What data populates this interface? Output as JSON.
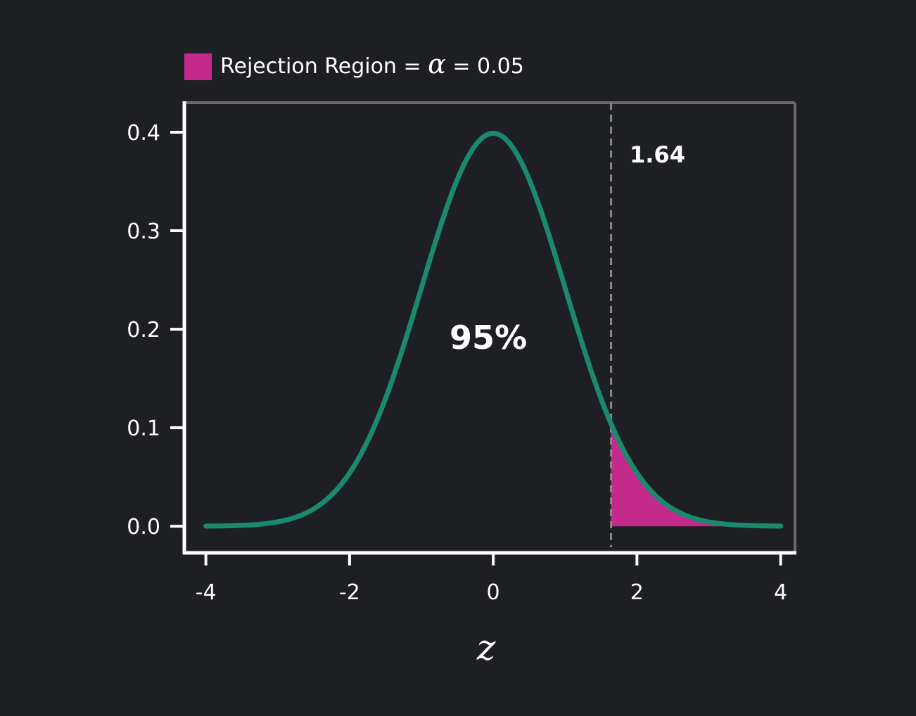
{
  "colors": {
    "background": "#1e1f22",
    "curve": "#1a8a6e",
    "rejection": "#c42a8b",
    "axis": "#ffffff",
    "frame": "#6b6b6b",
    "critical_line": "#8a8a8a"
  },
  "legend": {
    "swatch_color": "#c42a8b",
    "label_prefix": "Rejection Region = ",
    "alpha_symbol": "α",
    "label_suffix": " = 0.05"
  },
  "annotations": {
    "critical_value_label": "1.64",
    "center_label": "95%"
  },
  "chart_data": {
    "type": "area",
    "title": "",
    "xlabel": "z",
    "ylabel": "",
    "xlim": [
      -4.3,
      4.2
    ],
    "ylim": [
      -0.027,
      0.43
    ],
    "x_ticks": [
      -4,
      -2,
      0,
      2,
      4
    ],
    "x_tick_labels": [
      "-4",
      "-2",
      "0",
      "2",
      "4"
    ],
    "y_ticks": [
      0.0,
      0.1,
      0.2,
      0.3,
      0.4
    ],
    "y_tick_labels": [
      "0.0",
      "0.1",
      "0.2",
      "0.3",
      "0.4"
    ],
    "grid": false,
    "legend_position": "top-left",
    "series": [
      {
        "kind": "line",
        "color": "#1a8a6e",
        "x": [
          -4.0,
          -3.75,
          -3.5,
          -3.25,
          -3.0,
          -2.75,
          -2.5,
          -2.25,
          -2.0,
          -1.75,
          -1.5,
          -1.25,
          -1.0,
          -0.75,
          -0.5,
          -0.25,
          0.0,
          0.25,
          0.5,
          0.75,
          1.0,
          1.25,
          1.5,
          1.75,
          2.0,
          2.25,
          2.5,
          2.75,
          3.0,
          3.25,
          3.5,
          3.75,
          4.0
        ],
        "y": [
          0.0001,
          0.0004,
          0.0009,
          0.002,
          0.0044,
          0.0091,
          0.0175,
          0.0317,
          0.054,
          0.0863,
          0.1295,
          0.1826,
          0.242,
          0.3011,
          0.3521,
          0.3867,
          0.3989,
          0.3867,
          0.3521,
          0.3011,
          0.242,
          0.1826,
          0.1295,
          0.0863,
          0.054,
          0.0317,
          0.0175,
          0.0091,
          0.0044,
          0.002,
          0.0009,
          0.0004,
          0.0001
        ]
      },
      {
        "name": "Rejection Region",
        "kind": "area",
        "color": "#c42a8b",
        "x": [
          1.64,
          1.75,
          2.0,
          2.25,
          2.5,
          2.75,
          3.0,
          3.25,
          3.5,
          3.75,
          4.0
        ],
        "y": [
          0.104,
          0.0863,
          0.054,
          0.0317,
          0.0175,
          0.0091,
          0.0044,
          0.002,
          0.0009,
          0.0004,
          0.0001
        ]
      }
    ],
    "critical_value": 1.64,
    "alpha": 0.05
  }
}
